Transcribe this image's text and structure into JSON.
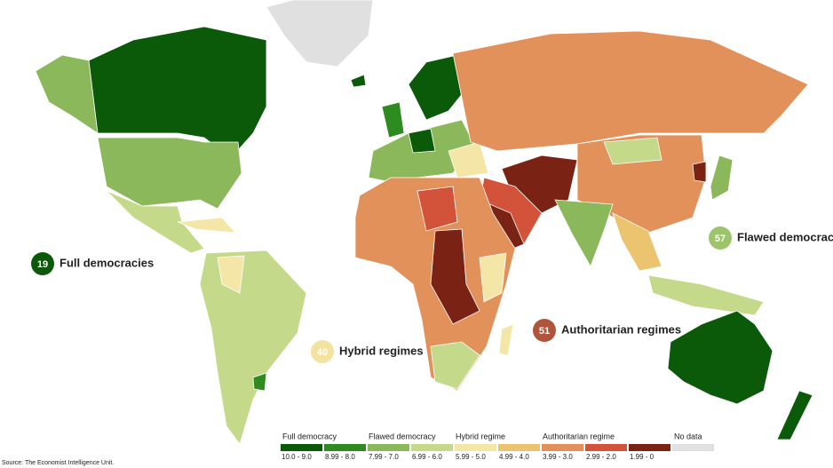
{
  "callouts": [
    {
      "count": 19,
      "label": "Full democracies",
      "color": "#0a5a0a"
    },
    {
      "count": 57,
      "label": "Flawed democracies",
      "color": "#9cc46a"
    },
    {
      "count": 40,
      "label": "Hybrid regimes",
      "color": "#f3e3a0"
    },
    {
      "count": 51,
      "label": "Authoritarian regimes",
      "color": "#b0543a"
    }
  ],
  "legend": {
    "groups": [
      "Full democracy",
      "Flawed democracy",
      "Hybrid regime",
      "Authoritarian regime",
      "No data"
    ],
    "items": [
      {
        "range": "10.0 - 9.0",
        "color": "#0a5a0a"
      },
      {
        "range": "8.99 - 8.0",
        "color": "#2e8b1f"
      },
      {
        "range": "7.99 - 7.0",
        "color": "#8ab85a"
      },
      {
        "range": "6.99 - 6.0",
        "color": "#c5d98a"
      },
      {
        "range": "5.99 - 5.0",
        "color": "#f3e6a6"
      },
      {
        "range": "4.99 - 4.0",
        "color": "#ecc36f"
      },
      {
        "range": "3.99 - 3.0",
        "color": "#e3915a"
      },
      {
        "range": "2.99 - 2.0",
        "color": "#d3523a"
      },
      {
        "range": "1.99 - 0",
        "color": "#7a2315"
      },
      {
        "color": "#e0e0e0"
      }
    ]
  },
  "source": "Source: The Economist Intelligence Unit."
}
